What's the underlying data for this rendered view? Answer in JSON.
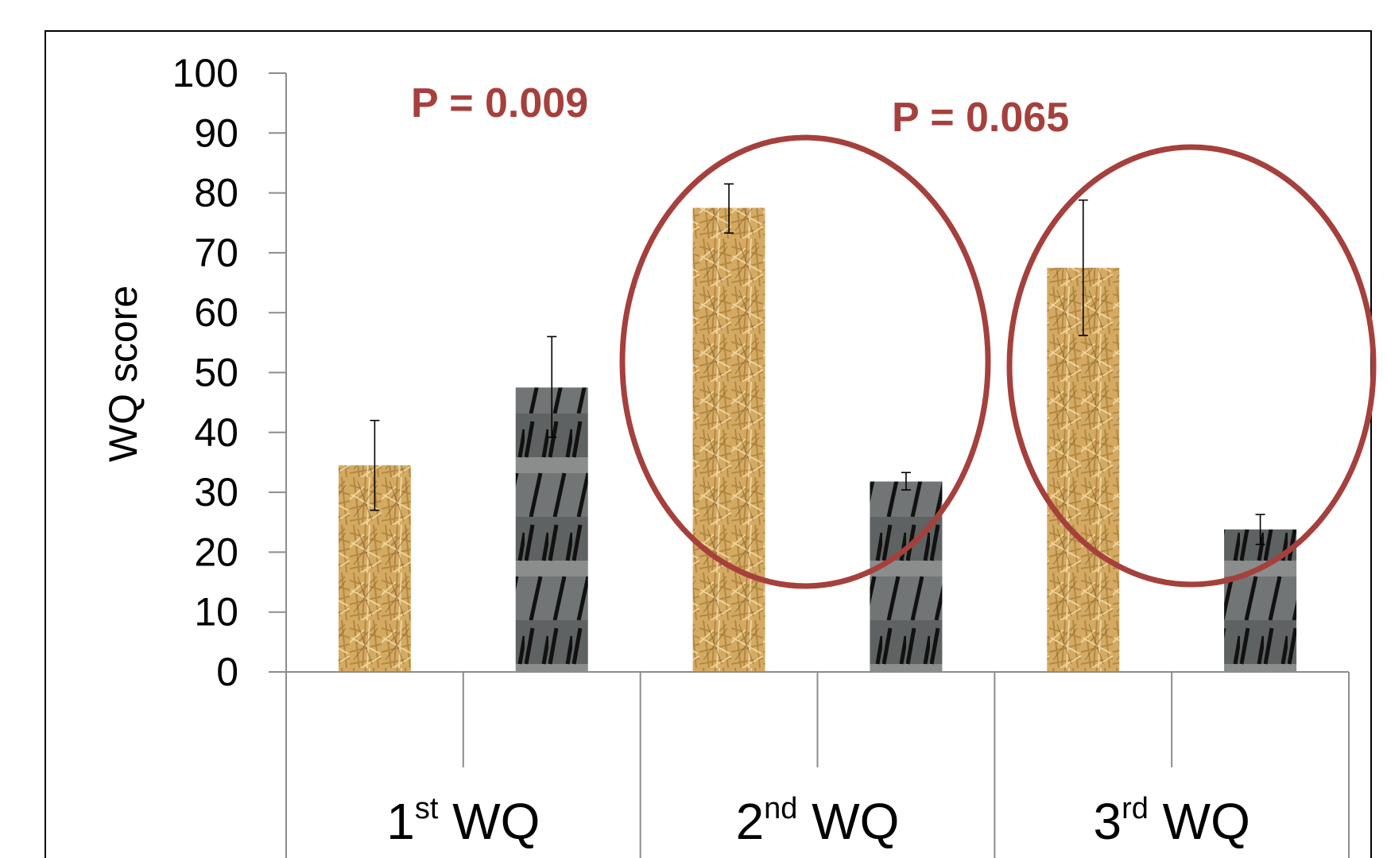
{
  "chart_data": {
    "type": "bar",
    "title": "",
    "xlabel": "",
    "ylabel": "WQ score",
    "ylim": [
      0,
      100
    ],
    "yticks": [
      "0",
      "10",
      "20",
      "30",
      "40",
      "50",
      "60",
      "70",
      "80",
      "90",
      "100"
    ],
    "grid": false,
    "legend": "none",
    "categories": [
      {
        "base": "1",
        "sup": "st",
        "rest": " WQ"
      },
      {
        "base": "2",
        "sup": "nd",
        "rest": " WQ"
      },
      {
        "base": "3",
        "sup": "rd",
        "rest": "  WQ"
      }
    ],
    "series": [
      {
        "texture": "straw",
        "values": [
          34.5,
          77.5,
          67.5
        ],
        "error_low": [
          27,
          73.3,
          56.2
        ],
        "error_high": [
          42,
          81.5,
          78.8
        ]
      },
      {
        "texture": "slatted-floor",
        "values": [
          47.5,
          31.8,
          23.8
        ],
        "error_low": [
          39.2,
          30.4,
          21.3
        ],
        "error_high": [
          56,
          33.3,
          26.3
        ]
      }
    ],
    "annotations": [
      {
        "text": "P = 0.009",
        "color": "#a5403d"
      },
      {
        "text": "P = 0.065",
        "color": "#a5403d"
      }
    ],
    "highlight_color": "#a5403d",
    "colors": {
      "straw": "#d4aa63",
      "slatted": "#6b6e6e",
      "axis": "#8c8c8c",
      "border": "#000000"
    }
  }
}
